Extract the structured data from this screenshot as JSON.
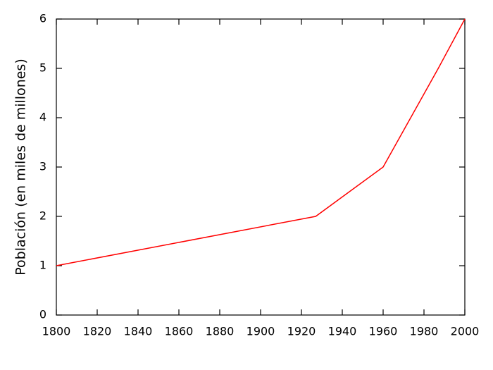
{
  "chart_data": {
    "type": "line",
    "y_label": "Población (en miles de millones)",
    "x": [
      1800,
      1927,
      1960,
      1987,
      2000
    ],
    "series": [
      {
        "color": "#ff0000",
        "values": [
          1,
          2,
          3,
          5,
          6
        ]
      }
    ],
    "xlim": [
      1800,
      2000
    ],
    "xticks": [
      1800,
      1820,
      1840,
      1860,
      1880,
      1900,
      1920,
      1940,
      1960,
      1980,
      2000
    ],
    "ylim": [
      0,
      6
    ],
    "yticks": [
      0,
      1,
      2,
      3,
      4,
      5,
      6
    ],
    "grid": false
  }
}
